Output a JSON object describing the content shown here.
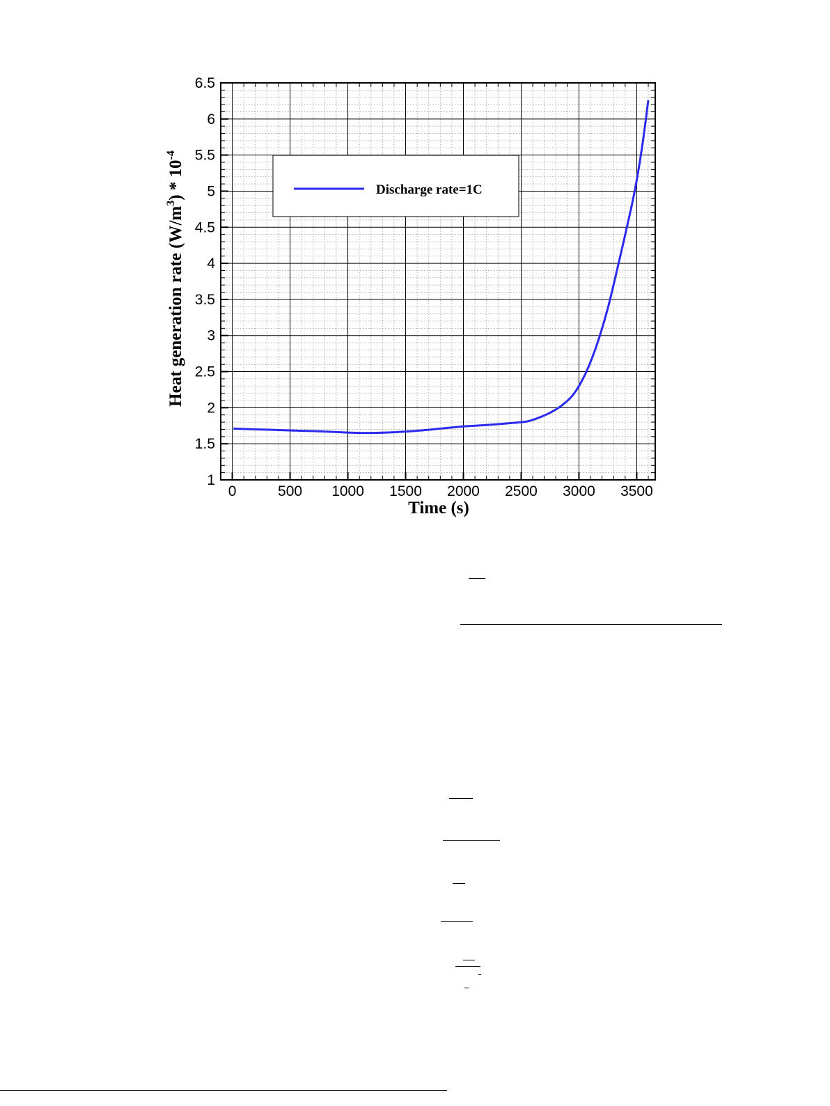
{
  "chart_data": {
    "type": "line",
    "xlabel": "Time (s)",
    "ylabel_main": "Heat generation rate (W/m",
    "ylabel_sup": "3",
    "ylabel_after": ") * 10",
    "ylabel_exp": "-4",
    "xlim": [
      -100,
      3660
    ],
    "ylim": [
      1,
      6.5
    ],
    "xticks": [
      0,
      500,
      1000,
      1500,
      2000,
      2500,
      3000,
      3500
    ],
    "xtick_labels": [
      "0",
      "500",
      "1000",
      "1500",
      "2000",
      "2500",
      "3000",
      "3500"
    ],
    "yticks": [
      1,
      1.5,
      2,
      2.5,
      3,
      3.5,
      4,
      4.5,
      5,
      5.5,
      6,
      6.5
    ],
    "ytick_labels": [
      "1",
      "1.5",
      "2",
      "2.5",
      "3",
      "3.5",
      "4",
      "4.5",
      "5",
      "5.5",
      "6",
      "6.5"
    ],
    "grid": true,
    "legend_position": "upper-left",
    "series": [
      {
        "name": "Discharge rate=1C",
        "color": "#2b2bef",
        "x": [
          10,
          200,
          400,
          600,
          800,
          1000,
          1200,
          1400,
          1600,
          1800,
          2000,
          2200,
          2400,
          2550,
          2650,
          2750,
          2850,
          2950,
          3050,
          3150,
          3250,
          3350,
          3450,
          3500,
          3550,
          3600
        ],
        "y": [
          1.71,
          1.7,
          1.69,
          1.68,
          1.67,
          1.655,
          1.65,
          1.66,
          1.68,
          1.71,
          1.74,
          1.76,
          1.785,
          1.81,
          1.86,
          1.93,
          2.03,
          2.18,
          2.45,
          2.85,
          3.38,
          4.05,
          4.75,
          5.15,
          5.65,
          6.26
        ]
      }
    ]
  }
}
